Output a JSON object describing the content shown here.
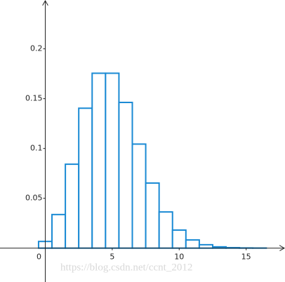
{
  "chart_data": {
    "type": "histogram",
    "bins": [
      -0.5,
      0.5,
      1.5,
      2.5,
      3.5,
      4.5,
      5.5,
      6.5,
      7.5,
      8.5,
      9.5,
      10.5,
      11.5,
      12.5,
      13.5,
      14.5,
      15.5,
      16.5,
      17.5
    ],
    "values": [
      0.0067,
      0.0337,
      0.0842,
      0.1404,
      0.1755,
      0.1755,
      0.1462,
      0.1044,
      0.0653,
      0.0363,
      0.0181,
      0.0082,
      0.0034,
      0.0013,
      0.0005,
      0.0002,
      0.0001,
      0.0
    ],
    "color": "#1a8ad4",
    "xlim": [
      -3.38,
      17.9
    ],
    "ylim": [
      -0.034,
      0.249
    ],
    "xticks": [
      0,
      5,
      10,
      15
    ],
    "yticks": [
      0.05,
      0.1,
      0.15,
      0.2
    ],
    "watermark": "https://blog.csdn.net/ccnt_2012"
  }
}
